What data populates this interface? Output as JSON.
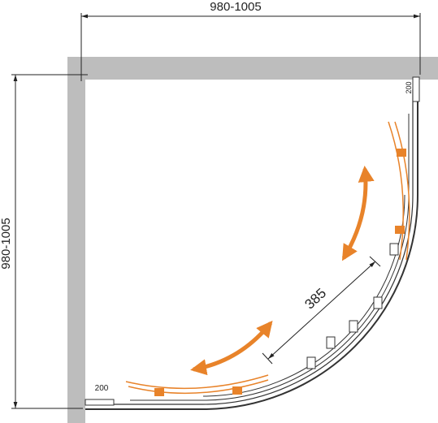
{
  "dimensions": {
    "width": "980-1005",
    "depth": "980-1005",
    "door_opening": "385",
    "right_offset": "200",
    "bottom_offset": "200"
  }
}
